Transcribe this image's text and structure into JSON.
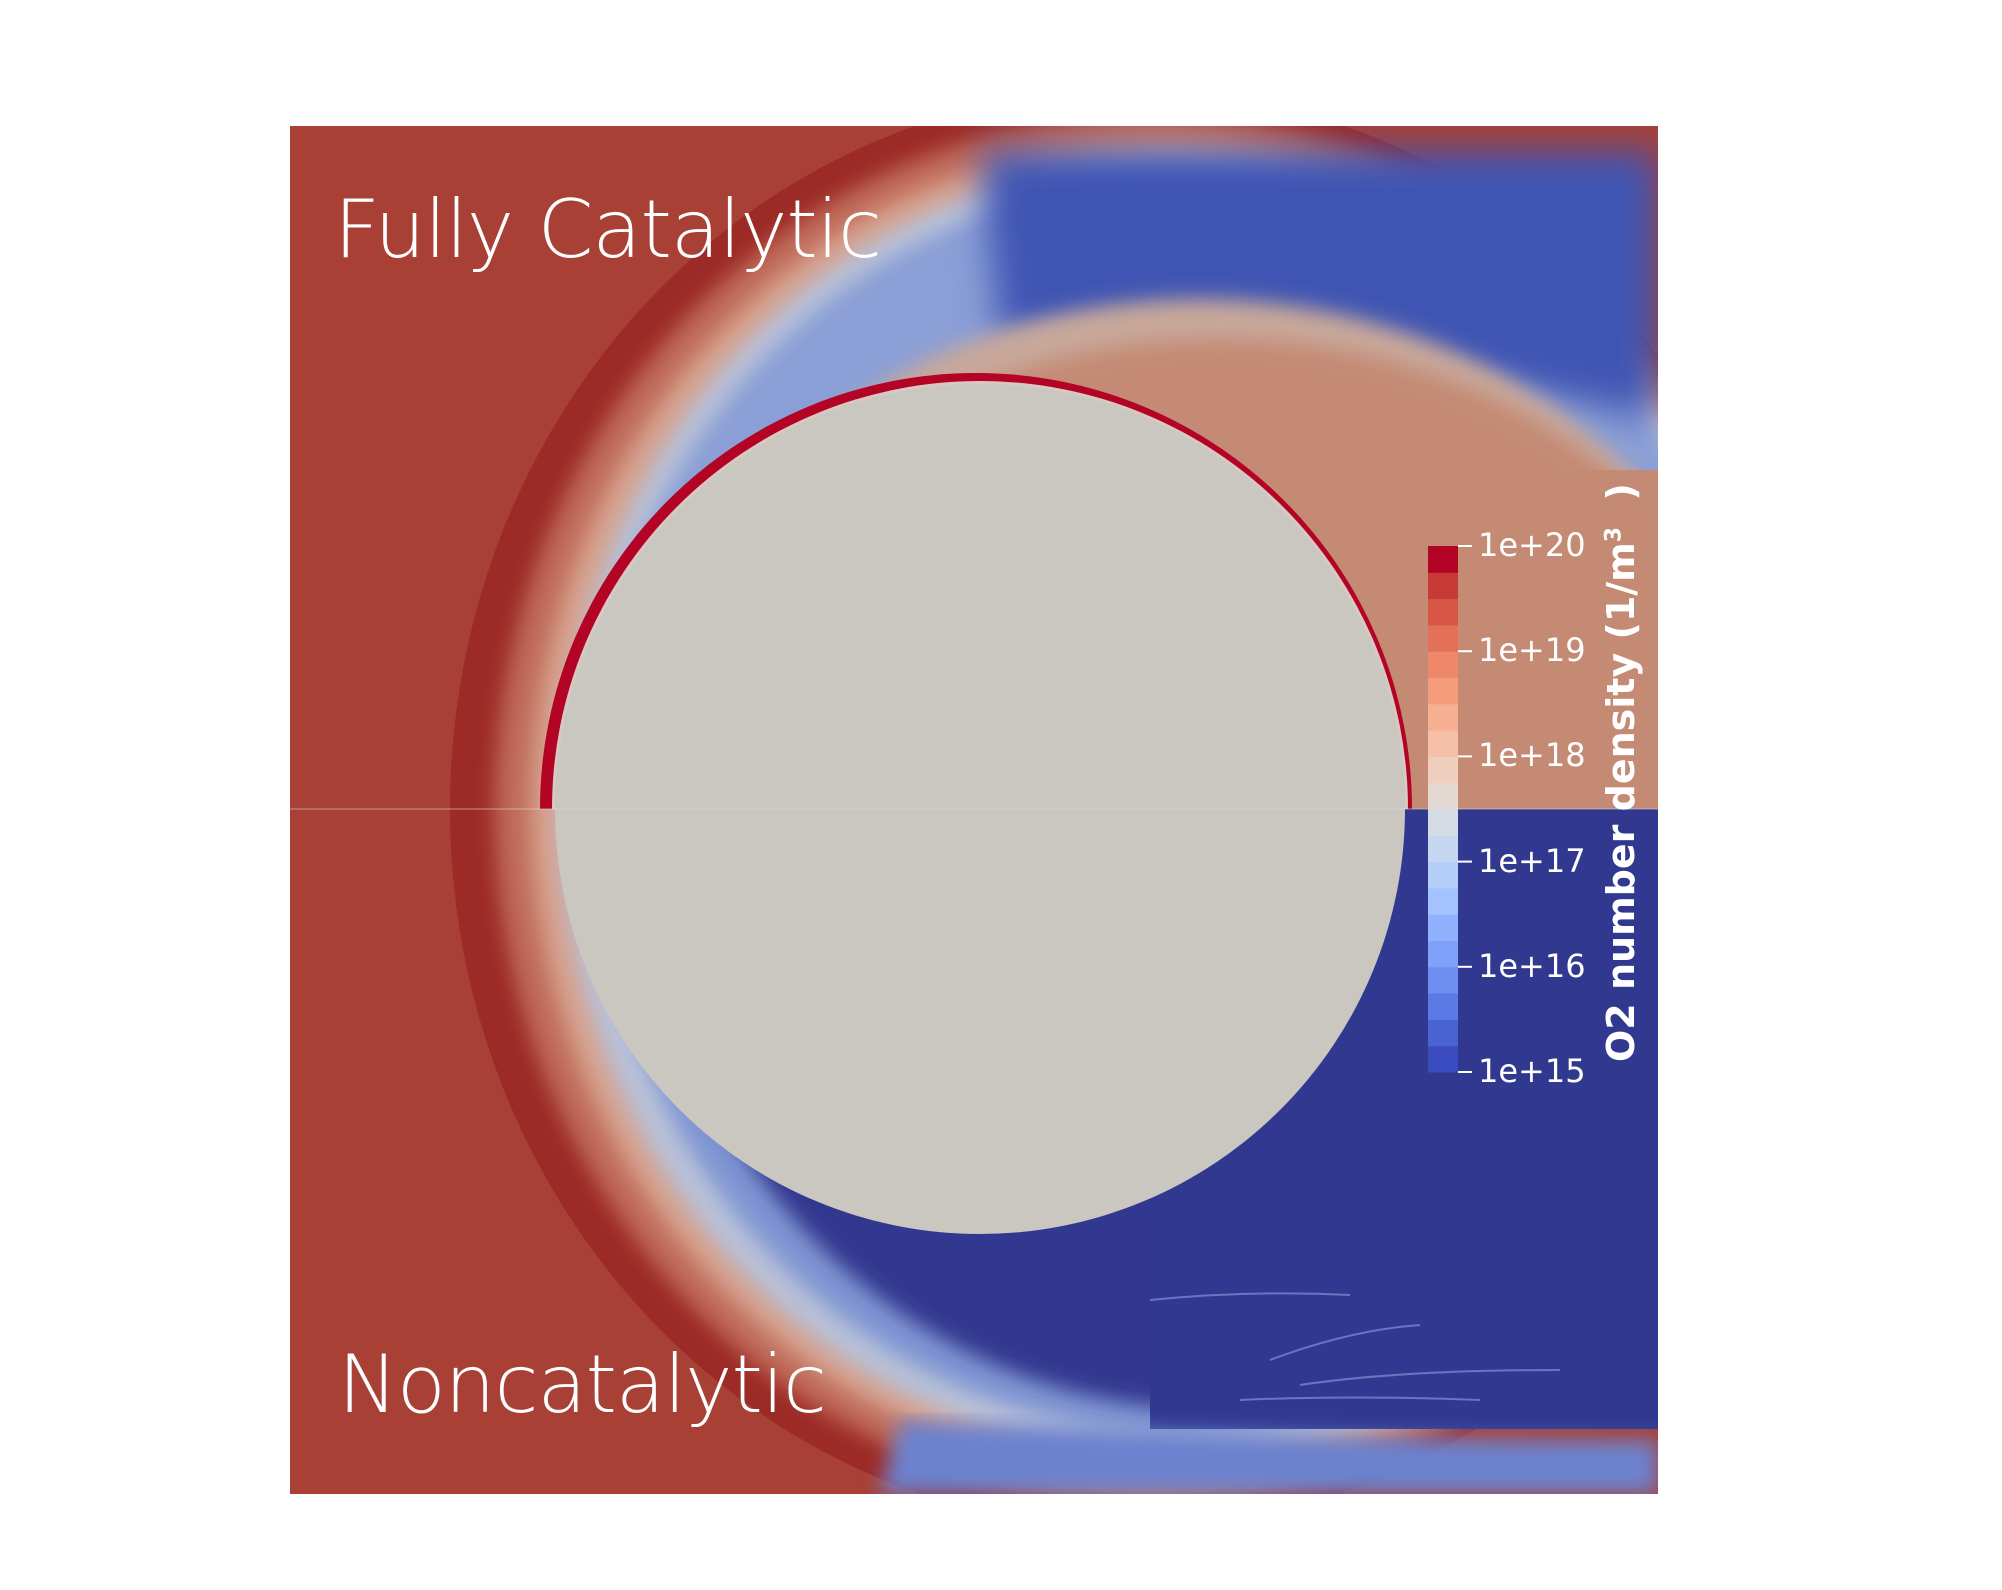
{
  "top_label": "Fully Catalytic",
  "bottom_label": "Noncatalytic",
  "colorbar": {
    "title": "O2 number density (1/m",
    "title_suffix": ")",
    "ticks": [
      "1e+20",
      "1e+19",
      "1e+18",
      "1e+17",
      "1e+16",
      "1e+15"
    ],
    "range": [
      1000000000000000.0,
      1e+20
    ],
    "scale": "log",
    "colors": [
      "#3b4cc0",
      "#4a63d3",
      "#5b7ae5",
      "#6c8ff1",
      "#7ea1fa",
      "#90b2fe",
      "#a3c2fe",
      "#b5cffb",
      "#c6d6f1",
      "#d5dbe5",
      "#e4d9d2",
      "#efcebd",
      "#f5c0a7",
      "#f7af91",
      "#f59c7d",
      "#ef886b",
      "#e5705a",
      "#d85646",
      "#c83a36",
      "#b40426"
    ]
  },
  "colors": {
    "freestream": "#a84035",
    "shock_dark": "#9c2a26",
    "body": "#c9c7c0",
    "wake_low": "#30398f",
    "wake_high_top": "#c48a74"
  }
}
